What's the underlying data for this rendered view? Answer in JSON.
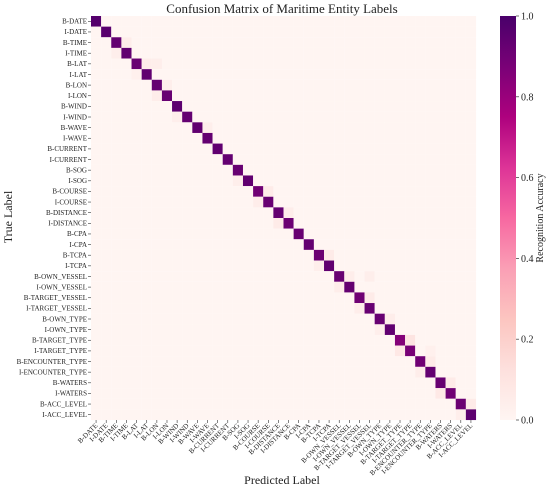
{
  "chart_data": {
    "type": "heatmap",
    "title": "Confusion Matrix of Maritime Entity Labels",
    "xlabel": "Predicted Label",
    "ylabel": "True Label",
    "colorbar_label": "Recognition Accuracy",
    "colorbar_range": [
      0.0,
      1.0
    ],
    "colorbar_ticks": [
      "0.0",
      "0.2",
      "0.4",
      "0.6",
      "0.8",
      "1.0"
    ],
    "colorscale": [
      "#fff5f2",
      "#fde0dd",
      "#fcc5c0",
      "#fa9fb5",
      "#f768a1",
      "#dd3497",
      "#ae017e",
      "#7a0177",
      "#49006a"
    ],
    "labels": [
      "B-DATE",
      "I-DATE",
      "B-TIME",
      "I-TIME",
      "B-LAT",
      "I-LAT",
      "B-LON",
      "I-LON",
      "B-WIND",
      "I-WIND",
      "B-WAVE",
      "I-WAVE",
      "B-CURRENT",
      "I-CURRENT",
      "B-SOG",
      "I-SOG",
      "B-COURSE",
      "I-COURSE",
      "B-DISTANCE",
      "I-DISTANCE",
      "B-CPA",
      "I-CPA",
      "B-TCPA",
      "I-TCPA",
      "B-OWN_VESSEL",
      "I-OWN_VESSEL",
      "B-TARGET_VESSEL",
      "I-TARGET_VESSEL",
      "B-OWN_TYPE",
      "I-OWN_TYPE",
      "B-TARGET_TYPE",
      "I-TARGET_TYPE",
      "B-ENCOUNTER_TYPE",
      "I-ENCOUNTER_TYPE",
      "B-WATERS",
      "I-WATERS",
      "B-ACC_LEVEL",
      "I-ACC_LEVEL"
    ],
    "diagonal": [
      0.97,
      0.96,
      0.93,
      0.94,
      0.92,
      0.94,
      0.93,
      0.92,
      0.95,
      0.93,
      0.94,
      0.93,
      0.94,
      0.93,
      0.92,
      0.94,
      0.9,
      0.92,
      0.93,
      0.91,
      0.92,
      0.93,
      0.91,
      0.94,
      0.92,
      0.93,
      0.9,
      0.92,
      0.92,
      0.94,
      0.85,
      0.88,
      0.9,
      0.93,
      0.92,
      0.9,
      0.91,
      0.95
    ],
    "off_diagonal": [
      {
        "row": 2,
        "col": 3,
        "value": 0.05
      },
      {
        "row": 3,
        "col": 2,
        "value": 0.04
      },
      {
        "row": 4,
        "col": 5,
        "value": 0.05
      },
      {
        "row": 4,
        "col": 6,
        "value": 0.04
      },
      {
        "row": 5,
        "col": 4,
        "value": 0.03
      },
      {
        "row": 6,
        "col": 7,
        "value": 0.04
      },
      {
        "row": 7,
        "col": 6,
        "value": 0.05
      },
      {
        "row": 9,
        "col": 8,
        "value": 0.04
      },
      {
        "row": 10,
        "col": 11,
        "value": 0.04
      },
      {
        "row": 15,
        "col": 14,
        "value": 0.04
      },
      {
        "row": 16,
        "col": 17,
        "value": 0.06
      },
      {
        "row": 17,
        "col": 16,
        "value": 0.05
      },
      {
        "row": 18,
        "col": 19,
        "value": 0.05
      },
      {
        "row": 19,
        "col": 18,
        "value": 0.06
      },
      {
        "row": 22,
        "col": 23,
        "value": 0.06
      },
      {
        "row": 23,
        "col": 22,
        "value": 0.04
      },
      {
        "row": 24,
        "col": 25,
        "value": 0.05
      },
      {
        "row": 24,
        "col": 27,
        "value": 0.04
      },
      {
        "row": 25,
        "col": 24,
        "value": 0.05
      },
      {
        "row": 26,
        "col": 27,
        "value": 0.06
      },
      {
        "row": 27,
        "col": 26,
        "value": 0.05
      },
      {
        "row": 28,
        "col": 29,
        "value": 0.05
      },
      {
        "row": 29,
        "col": 28,
        "value": 0.04
      },
      {
        "row": 30,
        "col": 31,
        "value": 0.1
      },
      {
        "row": 31,
        "col": 30,
        "value": 0.08
      },
      {
        "row": 31,
        "col": 33,
        "value": 0.03
      },
      {
        "row": 32,
        "col": 33,
        "value": 0.06
      },
      {
        "row": 33,
        "col": 32,
        "value": 0.05
      },
      {
        "row": 34,
        "col": 35,
        "value": 0.06
      },
      {
        "row": 35,
        "col": 34,
        "value": 0.07
      },
      {
        "row": 36,
        "col": 37,
        "value": 0.06
      },
      {
        "row": 37,
        "col": 36,
        "value": 0.04
      }
    ]
  }
}
